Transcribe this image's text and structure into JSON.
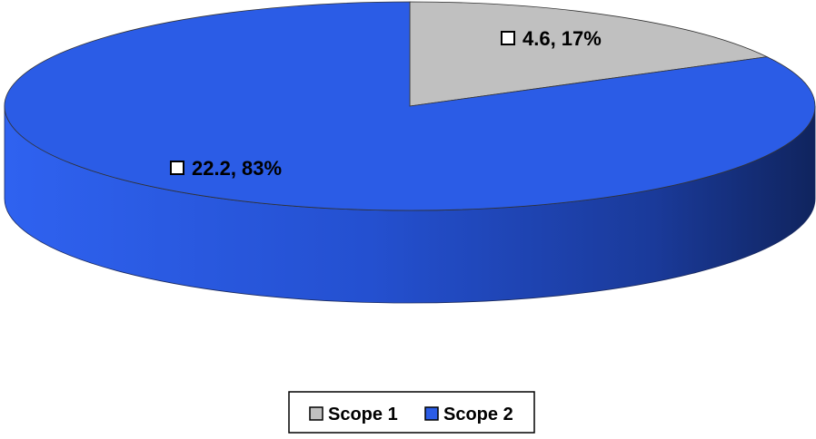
{
  "chart_data": {
    "type": "pie",
    "title": "",
    "categories": [
      "Scope 1",
      "Scope 2"
    ],
    "values": [
      4.6,
      22.2
    ],
    "percentages": [
      "17%",
      "83%"
    ],
    "data_labels": [
      "4.6, 17%",
      "22.2, 83%"
    ],
    "colors": [
      "#c0c0c0",
      "#2b5ce6"
    ],
    "legend": {
      "position": "bottom",
      "entries": [
        "Scope 1",
        "Scope 2"
      ]
    }
  }
}
